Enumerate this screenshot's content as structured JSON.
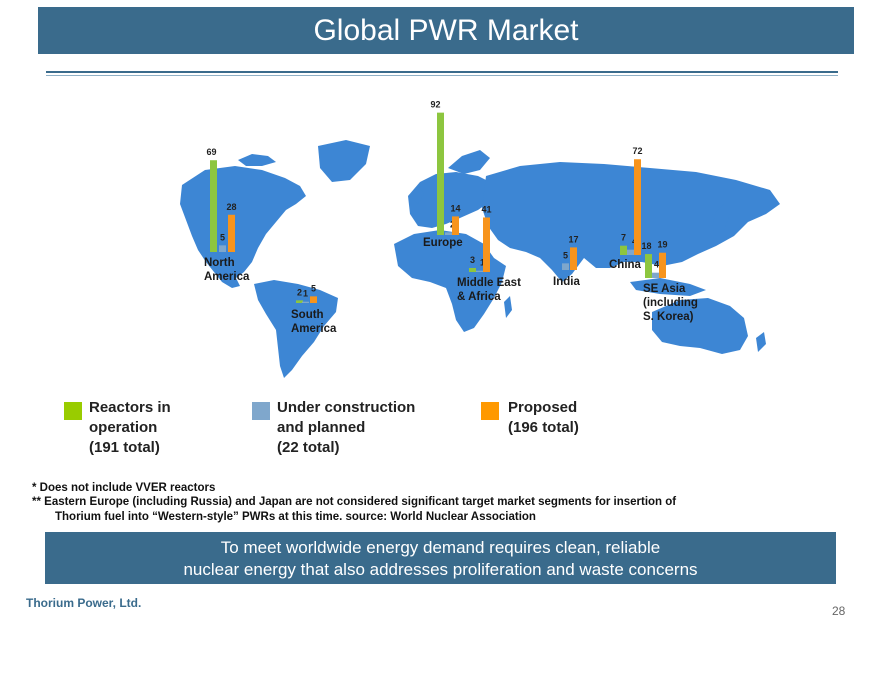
{
  "header": {
    "title": "Global PWR Market"
  },
  "chart_data": {
    "type": "bar",
    "title": "Global PWR Market",
    "categories": [
      "North America",
      "South America",
      "Europe",
      "Middle East & Africa",
      "India",
      "China",
      "SE Asia (including S. Korea)"
    ],
    "category_labels": [
      [
        "North",
        "America"
      ],
      [
        "South",
        "America"
      ],
      [
        "Europe"
      ],
      [
        "Middle East",
        "& Africa"
      ],
      [
        "India"
      ],
      [
        "China"
      ],
      [
        "SE Asia",
        "(including",
        "S. Korea)"
      ]
    ],
    "series": [
      {
        "name": "Reactors in operation",
        "color": "#8dc63f",
        "values": [
          69,
          2,
          92,
          3,
          0,
          7,
          18
        ]
      },
      {
        "name": "Under construction and planned",
        "color": "#7fa7cc",
        "values": [
          5,
          1,
          2,
          1,
          5,
          4,
          4
        ]
      },
      {
        "name": "Proposed",
        "color": "#f7941d",
        "values": [
          28,
          5,
          14,
          41,
          17,
          72,
          19
        ]
      }
    ]
  },
  "legend": [
    {
      "lines": [
        "Reactors in",
        "operation",
        "(191 total)"
      ],
      "color": "#99cc00"
    },
    {
      "lines": [
        "Under construction",
        "and planned",
        "(22 total)"
      ],
      "color": "#7fa7cc"
    },
    {
      "lines": [
        "Proposed",
        "(196 total)"
      ],
      "color": "#ff9900"
    }
  ],
  "footnotes": {
    "line1": "*  Does not include VVER reactors",
    "line2": "** Eastern Europe (including Russia) and Japan are not considered significant target market segments for insertion of",
    "line3": "Thorium fuel into “Western-style” PWRs at this time. source: World Nuclear Association"
  },
  "banner": {
    "line1": "To meet worldwide energy demand requires clean, reliable",
    "line2": "nuclear energy that also addresses proliferation and waste concerns"
  },
  "footer": {
    "company": "Thorium Power, Ltd.",
    "page_number": "28"
  }
}
